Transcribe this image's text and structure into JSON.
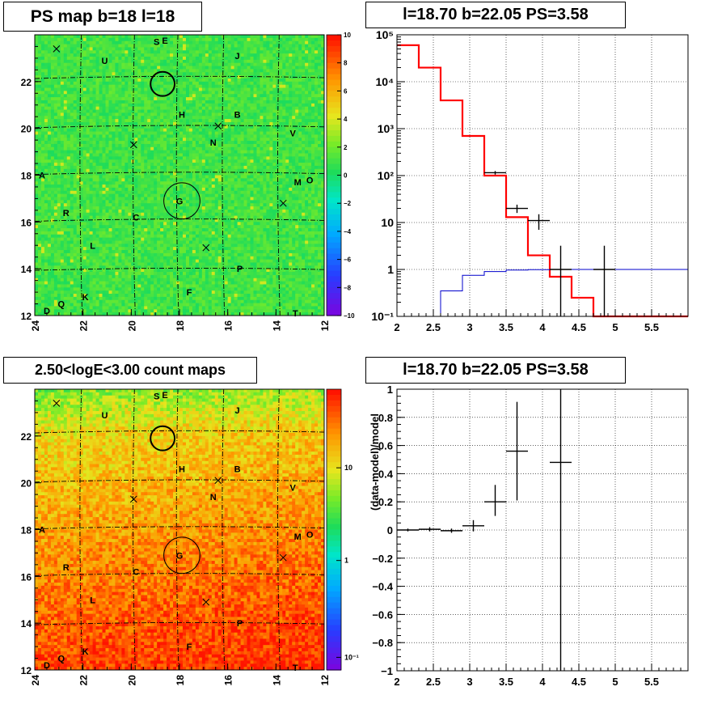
{
  "panels": {
    "ps_map": {
      "title": "PS map b=18 l=18",
      "x_ticks": [
        "24",
        "22",
        "20",
        "18",
        "16",
        "14",
        "12"
      ],
      "y_ticks": [
        "12",
        "14",
        "16",
        "18",
        "20",
        "22"
      ],
      "colorbar_ticks": [
        "10",
        "8",
        "6",
        "4",
        "2",
        "0",
        "−2",
        "−4",
        "−6",
        "−8",
        "−10"
      ],
      "colorbar_range": [
        -10,
        10
      ]
    },
    "spectrum": {
      "title": "l=18.70 b=22.05 PS=3.58"
    },
    "count_map": {
      "title": "2.50<logE<3.00 count maps",
      "x_ticks": [
        "24",
        "22",
        "20",
        "18",
        "16",
        "14",
        "12"
      ],
      "y_ticks": [
        "12",
        "14",
        "16",
        "18",
        "20",
        "22"
      ],
      "colorbar_ticks": [
        "10",
        "1",
        "10⁻¹"
      ],
      "colorbar_scale": "log"
    },
    "residual": {
      "title": "l=18.70 b=22.05 PS=3.58"
    }
  },
  "map_labels": [
    {
      "t": "S",
      "x": 18.95,
      "y": 23.7
    },
    {
      "t": "E",
      "x": 18.6,
      "y": 23.75
    },
    {
      "t": "U",
      "x": 21.1,
      "y": 22.9
    },
    {
      "t": "J",
      "x": 15.6,
      "y": 23.1
    },
    {
      "t": "H",
      "x": 17.9,
      "y": 20.6
    },
    {
      "t": "B",
      "x": 15.6,
      "y": 20.6
    },
    {
      "t": "N",
      "x": 16.6,
      "y": 19.4
    },
    {
      "t": "V",
      "x": 13.3,
      "y": 19.8
    },
    {
      "t": "A",
      "x": 23.7,
      "y": 18.0
    },
    {
      "t": "M",
      "x": 13.1,
      "y": 17.7
    },
    {
      "t": "O",
      "x": 12.6,
      "y": 17.8
    },
    {
      "t": "G",
      "x": 18.0,
      "y": 16.9
    },
    {
      "t": "R",
      "x": 22.7,
      "y": 16.4
    },
    {
      "t": "C",
      "x": 19.8,
      "y": 16.2
    },
    {
      "t": "L",
      "x": 21.6,
      "y": 15.0
    },
    {
      "t": "P",
      "x": 15.5,
      "y": 14.0
    },
    {
      "t": "F",
      "x": 17.6,
      "y": 13.0
    },
    {
      "t": "K",
      "x": 21.9,
      "y": 12.8
    },
    {
      "t": "Q",
      "x": 22.9,
      "y": 12.5
    },
    {
      "t": "D",
      "x": 23.5,
      "y": 12.2
    },
    {
      "t": "T",
      "x": 13.2,
      "y": 12.1
    }
  ],
  "map_crosses": [
    {
      "x": 23.1,
      "y": 23.4
    },
    {
      "x": 19.9,
      "y": 19.3
    },
    {
      "x": 16.4,
      "y": 20.1
    },
    {
      "x": 13.7,
      "y": 16.8
    },
    {
      "x": 16.9,
      "y": 14.9
    }
  ],
  "map_circles": [
    {
      "x": 18.7,
      "y": 21.9,
      "r": 0.5
    },
    {
      "x": 17.9,
      "y": 16.9,
      "r": 0.75
    }
  ],
  "chart_data": [
    {
      "type": "heatmap",
      "title": "PS map b=18 l=18",
      "x_range": [
        24,
        12
      ],
      "y_range": [
        12,
        24
      ],
      "z_range": [
        -10,
        10
      ]
    },
    {
      "type": "line",
      "title": "l=18.70 b=22.05 PS=3.58",
      "xlim": [
        2,
        6
      ],
      "ylim": [
        0.1,
        100000
      ],
      "y_scale": "log",
      "x_ticks": [
        "2",
        "2.5",
        "3",
        "3.5",
        "4",
        "4.5",
        "5",
        "5.5"
      ],
      "y_ticks": [
        "10⁻¹",
        "1",
        "10",
        "10²",
        "10³",
        "10⁴",
        "10⁵"
      ],
      "y_tick_values": [
        0.1,
        1,
        10,
        100,
        1000,
        10000,
        100000
      ],
      "step_series": [
        {
          "color": "#ff0000",
          "bins": [
            [
              2.0,
              2.3,
              60000
            ],
            [
              2.3,
              2.6,
              20000
            ],
            [
              2.6,
              2.9,
              4000
            ],
            [
              2.9,
              3.2,
              700
            ],
            [
              3.2,
              3.5,
              100
            ],
            [
              3.5,
              3.8,
              13
            ],
            [
              3.8,
              4.1,
              2
            ],
            [
              4.1,
              4.4,
              0.7
            ],
            [
              4.4,
              4.7,
              0.25
            ],
            [
              4.7,
              6.0,
              0.1
            ]
          ]
        },
        {
          "color": "#0000cc",
          "bins": [
            [
              2.6,
              2.9,
              0.35
            ],
            [
              2.9,
              3.2,
              0.75
            ],
            [
              3.2,
              3.5,
              0.9
            ],
            [
              3.5,
              3.8,
              0.97
            ],
            [
              3.8,
              4.1,
              0.99
            ],
            [
              4.1,
              6.0,
              1.0
            ]
          ]
        }
      ],
      "points": [
        {
          "x": 3.35,
          "y": 115,
          "xerr": 0.15,
          "ylo": 105,
          "yhi": 125
        },
        {
          "x": 3.65,
          "y": 20,
          "xerr": 0.15,
          "ylo": 16,
          "yhi": 24
        },
        {
          "x": 3.95,
          "y": 11,
          "xerr": 0.15,
          "ylo": 7,
          "yhi": 15
        },
        {
          "x": 4.25,
          "y": 1.0,
          "xerr": 0.15,
          "ylo": 0.1,
          "yhi": 3.2
        },
        {
          "x": 4.85,
          "y": 1.0,
          "xerr": 0.15,
          "ylo": 0.1,
          "yhi": 3.2
        }
      ]
    },
    {
      "type": "heatmap",
      "title": "2.50<logE<3.00 count maps",
      "x_range": [
        24,
        12
      ],
      "y_range": [
        12,
        24
      ],
      "z_scale": "log"
    },
    {
      "type": "scatter",
      "title": "l=18.70 b=22.05 PS=3.58",
      "ylabel": "(data-model)/model",
      "xlim": [
        2,
        6
      ],
      "ylim": [
        -1,
        1
      ],
      "x_ticks": [
        "2",
        "2.5",
        "3",
        "3.5",
        "4",
        "4.5",
        "5",
        "5.5"
      ],
      "y_ticks": [
        "−1",
        "−0.8",
        "−0.6",
        "−0.4",
        "−0.2",
        "0",
        "0.2",
        "0.4",
        "0.6",
        "0.8",
        "1"
      ],
      "y_tick_values": [
        -1,
        -0.8,
        -0.6,
        -0.4,
        -0.2,
        0,
        0.2,
        0.4,
        0.6,
        0.8,
        1
      ],
      "points": [
        {
          "x": 2.15,
          "y": 0.0,
          "xerr": 0.15,
          "ylo": -0.01,
          "yhi": 0.01
        },
        {
          "x": 2.45,
          "y": 0.005,
          "xerr": 0.15,
          "ylo": -0.01,
          "yhi": 0.02
        },
        {
          "x": 2.75,
          "y": -0.005,
          "xerr": 0.15,
          "ylo": -0.02,
          "yhi": 0.01
        },
        {
          "x": 3.05,
          "y": 0.03,
          "xerr": 0.15,
          "ylo": -0.01,
          "yhi": 0.07
        },
        {
          "x": 3.35,
          "y": 0.2,
          "xerr": 0.15,
          "ylo": 0.1,
          "yhi": 0.32
        },
        {
          "x": 3.65,
          "y": 0.56,
          "xerr": 0.15,
          "ylo": 0.21,
          "yhi": 0.91
        },
        {
          "x": 4.25,
          "y": 0.48,
          "xerr": 0.15,
          "ylo": -1.0,
          "yhi": 1.0
        }
      ]
    }
  ]
}
